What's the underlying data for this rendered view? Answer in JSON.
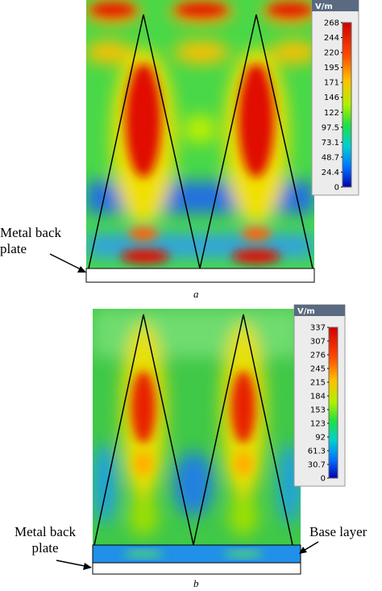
{
  "panels": [
    {
      "label": "a",
      "unit": "V/m",
      "ticks": [
        268,
        244,
        220,
        195,
        171,
        146,
        122,
        97.5,
        73.1,
        48.7,
        24.4,
        0
      ],
      "annotations": [
        "Metal back plate"
      ]
    },
    {
      "label": "b",
      "unit": "V/m",
      "ticks": [
        337,
        307,
        276,
        245,
        215,
        184,
        153,
        123,
        92,
        61.3,
        30.7,
        0
      ],
      "annotations": [
        "Metal back plate",
        "Base layer"
      ]
    }
  ]
}
